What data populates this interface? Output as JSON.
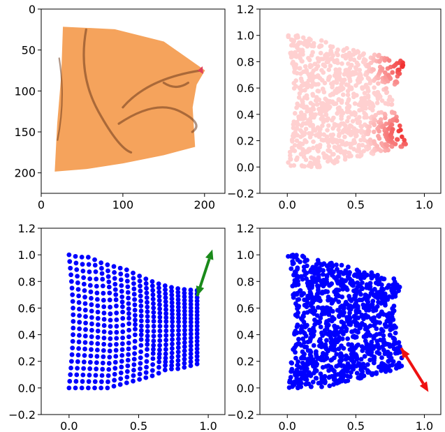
{
  "chart_data": [
    {
      "id": "image-panel",
      "type": "image",
      "xlim": [
        0,
        225
      ],
      "ylim": [
        225,
        0
      ],
      "xticks": [
        0,
        100,
        200
      ],
      "yticks": [
        0,
        50,
        100,
        150,
        200
      ],
      "xtick_labels": [
        "0",
        "100",
        "200"
      ],
      "ytick_labels": [
        "0",
        "50",
        "100",
        "150",
        "200"
      ],
      "cloth_color": "#f5a35c",
      "fold_color": "#6b3a1e",
      "marker_color": "#e0405a",
      "cloth_outline": [
        [
          27,
          22
        ],
        [
          90,
          25
        ],
        [
          150,
          40
        ],
        [
          200,
          75
        ],
        [
          190,
          92
        ],
        [
          185,
          120
        ],
        [
          188,
          168
        ],
        [
          150,
          178
        ],
        [
          100,
          188
        ],
        [
          55,
          195
        ],
        [
          17,
          198
        ],
        [
          20,
          140
        ],
        [
          25,
          80
        ]
      ],
      "grasp_point": [
        195,
        75
      ]
    },
    {
      "id": "heat-panel",
      "type": "scatter",
      "xlim": [
        -0.2,
        1.12
      ],
      "ylim": [
        -0.2,
        1.2
      ],
      "xticks": [
        0.0,
        0.5,
        1.0
      ],
      "yticks": [
        -0.2,
        0.0,
        0.2,
        0.4,
        0.6,
        0.8,
        1.0,
        1.2
      ],
      "xtick_labels": [
        "0.0",
        "0.5",
        "1.0"
      ],
      "ytick_labels": [
        "−0.2",
        "0.0",
        "0.2",
        "0.4",
        "0.6",
        "0.8",
        "1.0",
        "1.2"
      ],
      "low_color": "#ffd0d0",
      "high_color": "#ee1111",
      "hot_regions": [
        [
          0.88,
          0.76
        ],
        [
          0.87,
          0.26
        ]
      ],
      "n_points": 900
    },
    {
      "id": "grid-panel",
      "type": "scatter",
      "xlim": [
        -0.2,
        1.12
      ],
      "ylim": [
        -0.2,
        1.2
      ],
      "xticks": [
        0.0,
        0.5,
        1.0
      ],
      "yticks": [
        -0.2,
        0.0,
        0.2,
        0.4,
        0.6,
        0.8,
        1.0,
        1.2
      ],
      "xtick_labels": [
        "0.0",
        "0.5",
        "1.0"
      ],
      "ytick_labels": [
        "−0.2",
        "0.0",
        "0.2",
        "0.4",
        "0.6",
        "0.8",
        "1.0",
        "1.2"
      ],
      "point_color": "#0000ff",
      "grid_cols": 21,
      "grid_rows": 21,
      "arrow": {
        "from": [
          0.92,
          0.69
        ],
        "to": [
          1.03,
          1.04
        ],
        "color": "#1a8a1a"
      }
    },
    {
      "id": "random-panel",
      "type": "scatter",
      "xlim": [
        -0.2,
        1.12
      ],
      "ylim": [
        -0.2,
        1.2
      ],
      "xticks": [
        0.0,
        0.5,
        1.0
      ],
      "yticks": [
        -0.2,
        0.0,
        0.2,
        0.4,
        0.6,
        0.8,
        1.0,
        1.2
      ],
      "xtick_labels": [
        "0.0",
        "0.5",
        "1.0"
      ],
      "ytick_labels": [
        "−0.2",
        "0.0",
        "0.2",
        "0.4",
        "0.6",
        "0.8",
        "1.0",
        "1.2"
      ],
      "point_color": "#0000ff",
      "n_points": 1000,
      "arrow": {
        "from": [
          0.83,
          0.3
        ],
        "to": [
          1.03,
          -0.03
        ],
        "color": "#ee1111"
      }
    }
  ]
}
